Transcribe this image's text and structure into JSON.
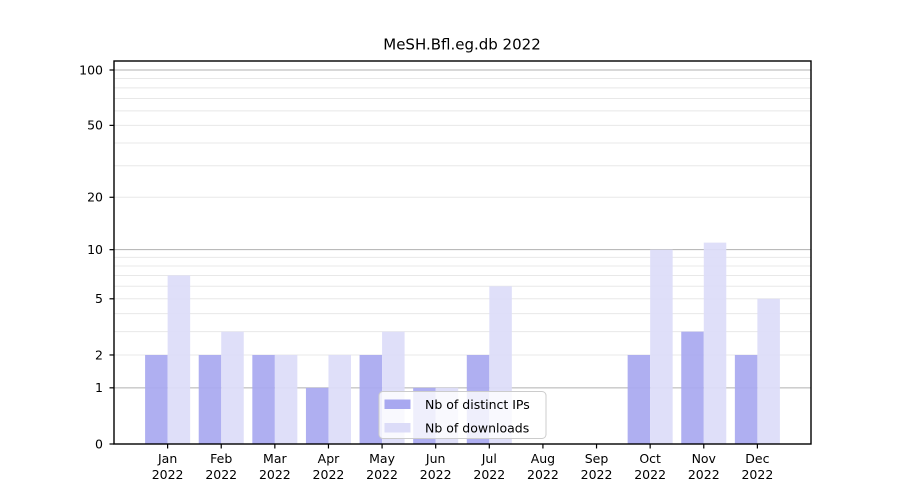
{
  "chart_data": {
    "type": "bar",
    "title": "MeSH.Bfl.eg.db 2022",
    "xlabel": "",
    "ylabel": "",
    "months": [
      "Jan",
      "Feb",
      "Mar",
      "Apr",
      "May",
      "Jun",
      "Jul",
      "Aug",
      "Sep",
      "Oct",
      "Nov",
      "Dec"
    ],
    "year": "2022",
    "categories": [
      "Jan 2022",
      "Feb 2022",
      "Mar 2022",
      "Apr 2022",
      "May 2022",
      "Jun 2022",
      "Jul 2022",
      "Aug 2022",
      "Sep 2022",
      "Oct 2022",
      "Nov 2022",
      "Dec 2022"
    ],
    "series": [
      {
        "name": "Nb of distinct IPs",
        "color": "#a8a8f0",
        "values": [
          2,
          2,
          2,
          1,
          2,
          1,
          2,
          0,
          0,
          2,
          3,
          2
        ]
      },
      {
        "name": "Nb of downloads",
        "color": "#dcdcf8",
        "values": [
          7,
          3,
          2,
          2,
          3,
          1,
          6,
          0,
          0,
          10,
          11,
          5
        ]
      }
    ],
    "yscale": "log1p",
    "ylim": [
      0,
      100
    ],
    "yticks": [
      0,
      1,
      2,
      5,
      10,
      20,
      50,
      100
    ],
    "grid": {
      "major": [
        1,
        10,
        100
      ],
      "minor": [
        2,
        3,
        4,
        5,
        6,
        7,
        8,
        9,
        20,
        30,
        40,
        50,
        60,
        70,
        80,
        90
      ]
    },
    "legend_position": "lower center",
    "colors": {
      "axis": "#000000",
      "text": "#000000",
      "grid_major": "#b0b0b0",
      "grid_minor": "#e8e8e8",
      "legend_border": "#cccccc",
      "legend_bg": "rgba(255,255,255,0.8)"
    }
  }
}
